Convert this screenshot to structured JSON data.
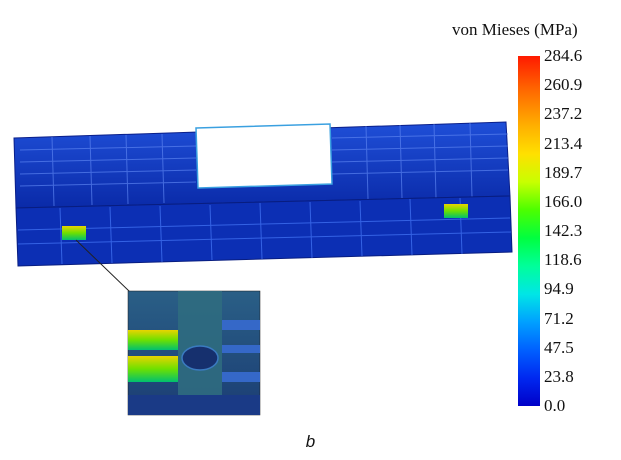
{
  "legend": {
    "title": "von Mieses (MPa)",
    "ticks": [
      "284.6",
      "260.9",
      "237.2",
      "213.4",
      "189.7",
      "166.0",
      "142.3",
      "118.6",
      "94.9",
      "71.2",
      "47.5",
      "23.8",
      "0.0"
    ],
    "min": 0.0,
    "max": 284.6,
    "colors": [
      "#ff1a00",
      "#ffb000",
      "#c8ff00",
      "#00ff40",
      "#00e6e6",
      "#0060ff",
      "#0000c8"
    ]
  },
  "panel_label": "b"
}
